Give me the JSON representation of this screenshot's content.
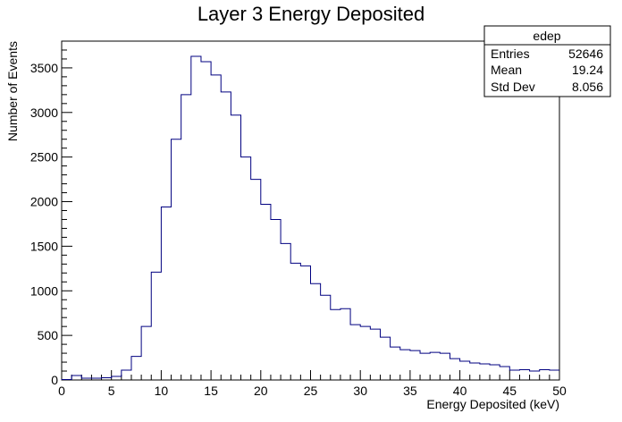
{
  "chart_data": {
    "type": "bar",
    "title": "Layer 3 Energy Deposited",
    "xlabel": "Energy Deposited (keV)",
    "ylabel": "Number of Events",
    "xlim": [
      0,
      50
    ],
    "ylim": [
      0,
      3800
    ],
    "bin_width": 1,
    "bin_edges_start": 0,
    "x_ticks": [
      0,
      5,
      10,
      15,
      20,
      25,
      30,
      35,
      40,
      45,
      50
    ],
    "y_ticks": [
      0,
      500,
      1000,
      1500,
      2000,
      2500,
      3000,
      3500
    ],
    "grid": false,
    "line_color": "#000080",
    "values": [
      5,
      50,
      20,
      20,
      25,
      40,
      110,
      265,
      600,
      1210,
      1940,
      2700,
      3200,
      3630,
      3570,
      3420,
      3230,
      2970,
      2500,
      2250,
      1970,
      1800,
      1530,
      1310,
      1280,
      1080,
      950,
      790,
      800,
      620,
      600,
      570,
      480,
      370,
      340,
      330,
      300,
      310,
      300,
      240,
      210,
      190,
      180,
      170,
      150,
      110,
      115,
      100,
      115,
      110
    ],
    "stats_box": {
      "title": "edep",
      "rows": [
        {
          "label": "Entries",
          "value": "52646"
        },
        {
          "label": "Mean",
          "value": "19.24"
        },
        {
          "label": "Std Dev",
          "value": "8.056"
        }
      ]
    }
  }
}
